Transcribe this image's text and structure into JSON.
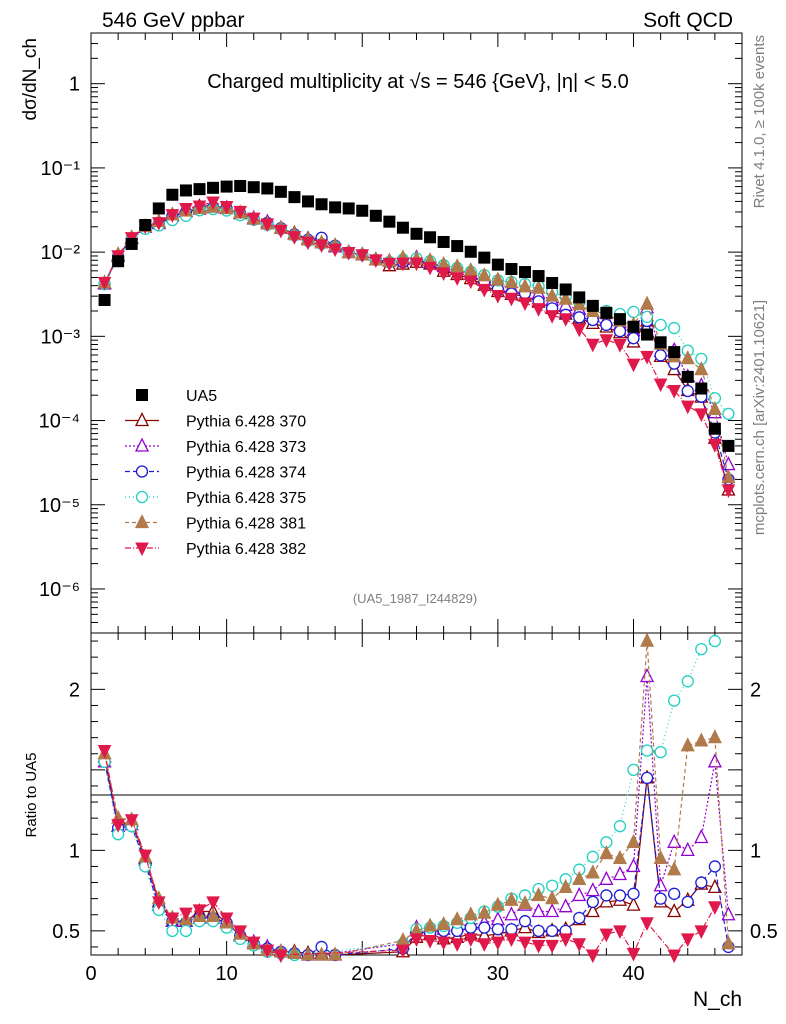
{
  "header": {
    "energy_label": "546 GeV ppbar",
    "category_label": "Soft QCD"
  },
  "side_labels": {
    "rivet": "Rivet 4.1.0, ≥ 100k events",
    "mcplots": "mcplots.cern.ch [arXiv:2401.10621]"
  },
  "chart_data": {
    "type": "scatter",
    "title": "Charged multiplicity at √s = 546 {GeV}, |η| < 5.0",
    "analysis_tag": "(UA5_1987_I244829)",
    "xlabel": "N_ch",
    "ylabel": "dσ/dN_ch",
    "ratio_ylabel": "Ratio to UA5",
    "xlim": [
      0,
      48
    ],
    "ylim": [
      3e-07,
      4
    ],
    "yscale": "log",
    "ratio_ylim": [
      0.35,
      2.35
    ],
    "x_ticks": [
      0,
      10,
      20,
      30,
      40
    ],
    "y_ticks": [
      {
        "value": 1e-06,
        "label": "10⁻⁶"
      },
      {
        "value": 1e-05,
        "label": "10⁻⁵"
      },
      {
        "value": 0.0001,
        "label": "10⁻⁴"
      },
      {
        "value": 0.001,
        "label": "10⁻³"
      },
      {
        "value": 0.01,
        "label": "10⁻²"
      },
      {
        "value": 0.1,
        "label": "10⁻¹"
      },
      {
        "value": 1,
        "label": "1"
      }
    ],
    "ratio_ticks": [
      0.5,
      1,
      2
    ],
    "reference": {
      "name": "UA5",
      "color": "#000000",
      "x": [
        1,
        2,
        3,
        4,
        5,
        6,
        7,
        8,
        9,
        10,
        11,
        12,
        13,
        14,
        15,
        16,
        17,
        18,
        19,
        20,
        21,
        22,
        23,
        24,
        25,
        26,
        27,
        28,
        29,
        30,
        31,
        32,
        33,
        34,
        35,
        36,
        37,
        38,
        39,
        40,
        41,
        42,
        43,
        44,
        45,
        46,
        47
      ],
      "y": [
        0.0027,
        0.0078,
        0.0125,
        0.021,
        0.033,
        0.048,
        0.054,
        0.056,
        0.058,
        0.06,
        0.061,
        0.059,
        0.057,
        0.052,
        0.045,
        0.04,
        0.037,
        0.034,
        0.033,
        0.031,
        0.027,
        0.023,
        0.0195,
        0.0165,
        0.015,
        0.0132,
        0.0118,
        0.0101,
        0.0086,
        0.0071,
        0.0063,
        0.0058,
        0.0052,
        0.0043,
        0.0036,
        0.0029,
        0.0023,
        0.0019,
        0.0016,
        0.0013,
        0.00105,
        0.00085,
        0.00065,
        0.00033,
        0.00024,
        8e-05,
        5e-05
      ]
    },
    "series": [
      {
        "name": "Pythia 6.428 370",
        "color": "#8b0000",
        "marker": "triangle-open",
        "dash": "",
        "ratio": [
          1.58,
          1.15,
          1.18,
          0.95,
          0.68,
          0.56,
          0.56,
          0.62,
          0.62,
          0.55,
          0.47,
          0.42,
          0.38,
          0.37,
          0.37,
          0.36,
          0.36,
          0.35,
          0.3,
          0.3,
          0.3,
          0.3,
          0.37,
          0.46,
          0.48,
          0.45,
          0.46,
          0.48,
          0.47,
          0.48,
          0.5,
          0.52,
          0.49,
          0.5,
          0.51,
          0.57,
          0.62,
          0.68,
          0.69,
          0.66,
          1.45,
          0.68,
          0.62,
          0.69,
          0.79,
          0.77,
          0.3
        ]
      },
      {
        "name": "Pythia 6.428 373",
        "color": "#9400d3",
        "marker": "triangle-open",
        "dash": "2,2",
        "ratio": [
          1.55,
          1.15,
          1.16,
          0.94,
          0.66,
          0.56,
          0.56,
          0.58,
          0.58,
          0.56,
          0.48,
          0.43,
          0.4,
          0.37,
          0.36,
          0.35,
          0.35,
          0.34,
          0.3,
          0.3,
          0.3,
          0.34,
          0.42,
          0.52,
          0.5,
          0.51,
          0.53,
          0.54,
          0.55,
          0.57,
          0.6,
          0.66,
          0.62,
          0.62,
          0.65,
          0.72,
          0.75,
          0.82,
          0.85,
          0.9,
          2.08,
          0.78,
          1.05,
          1.0,
          1.08,
          1.55,
          0.6
        ]
      },
      {
        "name": "Pythia 6.428 374",
        "color": "#1c1cd6",
        "marker": "circle-open",
        "dash": "5,3",
        "ratio": [
          1.55,
          1.14,
          1.15,
          0.92,
          0.65,
          0.56,
          0.55,
          0.58,
          0.58,
          0.55,
          0.47,
          0.42,
          0.39,
          0.37,
          0.36,
          0.35,
          0.4,
          0.35,
          0.3,
          0.3,
          0.3,
          0.33,
          0.39,
          0.49,
          0.49,
          0.5,
          0.5,
          0.52,
          0.52,
          0.51,
          0.51,
          0.56,
          0.5,
          0.5,
          0.5,
          0.58,
          0.68,
          0.72,
          0.72,
          0.73,
          1.45,
          0.7,
          0.73,
          0.68,
          0.8,
          0.9,
          0.4
        ]
      },
      {
        "name": "Pythia 6.428 375",
        "color": "#1fd1c1",
        "marker": "circle-open",
        "dash": "1,3",
        "ratio": [
          1.55,
          1.1,
          1.15,
          0.9,
          0.63,
          0.5,
          0.5,
          0.56,
          0.56,
          0.52,
          0.45,
          0.41,
          0.37,
          0.36,
          0.35,
          0.34,
          0.34,
          0.34,
          0.3,
          0.3,
          0.3,
          0.33,
          0.42,
          0.51,
          0.52,
          0.53,
          0.55,
          0.58,
          0.62,
          0.65,
          0.7,
          0.72,
          0.76,
          0.78,
          0.82,
          0.88,
          0.96,
          1.05,
          1.15,
          1.5,
          1.62,
          1.61,
          1.93,
          2.05,
          2.25,
          2.3,
          2.4
        ]
      },
      {
        "name": "Pythia 6.428 381",
        "color": "#b07a4a",
        "marker": "triangle-filled",
        "dash": "4,3",
        "ratio": [
          1.6,
          1.2,
          1.19,
          0.96,
          0.7,
          0.58,
          0.57,
          0.59,
          0.59,
          0.55,
          0.48,
          0.42,
          0.38,
          0.37,
          0.36,
          0.35,
          0.35,
          0.35,
          0.3,
          0.3,
          0.3,
          0.34,
          0.44,
          0.5,
          0.53,
          0.54,
          0.57,
          0.6,
          0.61,
          0.66,
          0.69,
          0.67,
          0.72,
          0.7,
          0.77,
          0.82,
          0.86,
          0.98,
          0.95,
          1.05,
          2.3,
          0.95,
          0.88,
          1.65,
          1.68,
          1.7,
          0.42
        ]
      },
      {
        "name": "Pythia 6.428 382",
        "color": "#e0194b",
        "marker": "triangle-down-filled",
        "dash": "6,2,1,2",
        "ratio": [
          1.62,
          1.16,
          1.19,
          0.97,
          0.68,
          0.58,
          0.61,
          0.63,
          0.68,
          0.58,
          0.5,
          0.43,
          0.38,
          0.35,
          0.34,
          0.33,
          0.33,
          0.32,
          0.3,
          0.3,
          0.3,
          0.32,
          0.38,
          0.45,
          0.44,
          0.43,
          0.42,
          0.45,
          0.42,
          0.43,
          0.45,
          0.43,
          0.41,
          0.41,
          0.45,
          0.42,
          0.35,
          0.48,
          0.5,
          0.36,
          0.55,
          0.32,
          0.35,
          0.45,
          0.5,
          0.65,
          0.3
        ]
      }
    ]
  }
}
